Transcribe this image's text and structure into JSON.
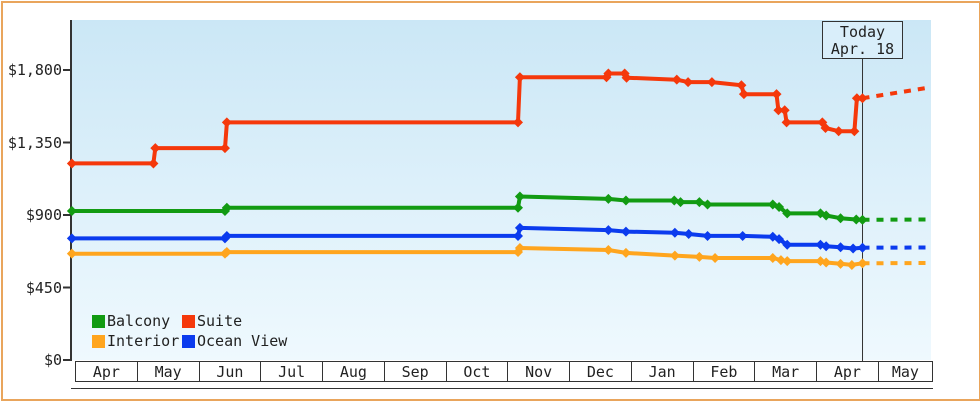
{
  "colors": {
    "frame_border": "#E9A55C",
    "plot_bg_top": "#CBE7F6",
    "plot_bg_bottom": "#EFF9FE",
    "axis": "#333333",
    "annotation_bg": "#D9EEFA",
    "balcony": "#129B12",
    "suite": "#F5380B",
    "interior": "#FFA51E",
    "ocean_view": "#0B3BEE"
  },
  "chart_data": {
    "type": "line",
    "subtype": "step-price-history",
    "title": "",
    "xlabel": "",
    "ylabel": "",
    "ylim": [
      0,
      2110
    ],
    "grid": false,
    "legend_position": "bottom-left",
    "x_labels": [
      "Apr",
      "May",
      "Jun",
      "Jul",
      "Aug",
      "Sep",
      "Oct",
      "Nov",
      "Dec",
      "Jan",
      "Feb",
      "Mar",
      "Apr",
      "May"
    ],
    "y_ticks": [
      {
        "v": 1800,
        "label": "$1,800"
      },
      {
        "v": 1350,
        "label": "$1,350"
      },
      {
        "v": 900,
        "label": "$900"
      },
      {
        "v": 450,
        "label": "$450"
      },
      {
        "v": 0,
        "label": "$0"
      }
    ],
    "legend": [
      "Balcony",
      "Suite",
      "Interior",
      "Ocean View"
    ],
    "annotation": {
      "line1": "Today",
      "line2": "Apr. 18",
      "x_month": 12.55
    },
    "series": [
      {
        "name": "Suite",
        "color": "#F5380B",
        "points": [
          [
            -0.05,
            1220
          ],
          [
            1.25,
            1220
          ],
          [
            1.28,
            1315
          ],
          [
            2.39,
            1315
          ],
          [
            2.42,
            1475
          ],
          [
            7.06,
            1475
          ],
          [
            7.09,
            1755
          ],
          [
            8.47,
            1755
          ],
          [
            8.5,
            1778
          ],
          [
            8.76,
            1778
          ],
          [
            8.79,
            1752
          ],
          [
            9.59,
            1740
          ],
          [
            9.77,
            1725
          ],
          [
            10.15,
            1725
          ],
          [
            10.62,
            1705
          ],
          [
            10.66,
            1650
          ],
          [
            11.18,
            1650
          ],
          [
            11.21,
            1550
          ],
          [
            11.31,
            1550
          ],
          [
            11.34,
            1475
          ],
          [
            11.91,
            1475
          ],
          [
            11.96,
            1440
          ],
          [
            12.17,
            1420
          ],
          [
            12.42,
            1420
          ],
          [
            12.46,
            1625
          ],
          [
            12.55,
            1625
          ]
        ],
        "forecast": [
          [
            12.55,
            1625
          ],
          [
            13.6,
            1690
          ]
        ]
      },
      {
        "name": "Balcony",
        "color": "#129B12",
        "points": [
          [
            -0.05,
            925
          ],
          [
            2.39,
            925
          ],
          [
            2.42,
            945
          ],
          [
            7.06,
            945
          ],
          [
            7.09,
            1015
          ],
          [
            8.5,
            1000
          ],
          [
            8.78,
            990
          ],
          [
            9.55,
            990
          ],
          [
            9.65,
            980
          ],
          [
            9.95,
            980
          ],
          [
            10.08,
            965
          ],
          [
            11.12,
            965
          ],
          [
            11.22,
            950
          ],
          [
            11.35,
            910
          ],
          [
            11.88,
            910
          ],
          [
            11.97,
            897
          ],
          [
            12.2,
            880
          ],
          [
            12.45,
            872
          ],
          [
            12.55,
            870
          ]
        ],
        "forecast": [
          [
            12.55,
            870
          ],
          [
            13.6,
            872
          ]
        ]
      },
      {
        "name": "Ocean View",
        "color": "#0B3BEE",
        "points": [
          [
            -0.05,
            755
          ],
          [
            2.39,
            755
          ],
          [
            2.42,
            770
          ],
          [
            7.06,
            770
          ],
          [
            7.09,
            820
          ],
          [
            8.5,
            806
          ],
          [
            8.78,
            797
          ],
          [
            9.56,
            790
          ],
          [
            9.78,
            782
          ],
          [
            10.08,
            770
          ],
          [
            10.64,
            770
          ],
          [
            11.12,
            765
          ],
          [
            11.22,
            750
          ],
          [
            11.35,
            715
          ],
          [
            11.88,
            715
          ],
          [
            11.97,
            706
          ],
          [
            12.2,
            700
          ],
          [
            12.4,
            692
          ],
          [
            12.55,
            697
          ]
        ],
        "forecast": [
          [
            12.55,
            697
          ],
          [
            13.6,
            698
          ]
        ]
      },
      {
        "name": "Interior",
        "color": "#FFA51E",
        "points": [
          [
            -0.05,
            660
          ],
          [
            2.39,
            660
          ],
          [
            2.42,
            670
          ],
          [
            7.06,
            670
          ],
          [
            7.09,
            695
          ],
          [
            8.5,
            683
          ],
          [
            8.78,
            665
          ],
          [
            9.56,
            648
          ],
          [
            9.95,
            640
          ],
          [
            10.2,
            633
          ],
          [
            11.12,
            633
          ],
          [
            11.25,
            620
          ],
          [
            11.35,
            614
          ],
          [
            11.88,
            614
          ],
          [
            11.97,
            605
          ],
          [
            12.2,
            597
          ],
          [
            12.38,
            590
          ],
          [
            12.55,
            600
          ]
        ],
        "forecast": [
          [
            12.55,
            600
          ],
          [
            13.6,
            602
          ]
        ]
      }
    ]
  }
}
